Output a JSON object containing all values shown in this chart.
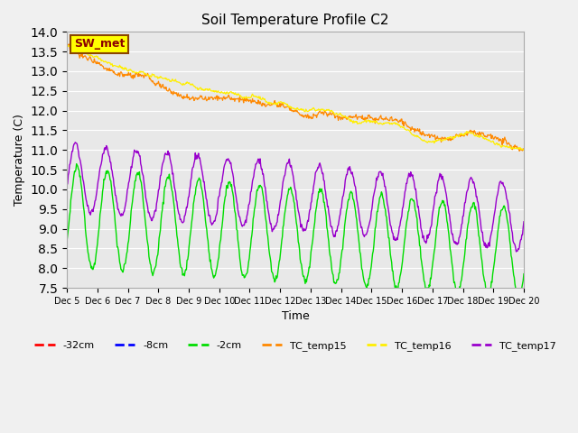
{
  "title": "Soil Temperature Profile C2",
  "xlabel": "Time",
  "ylabel": "Temperature (C)",
  "ylim": [
    7.5,
    14.0
  ],
  "xlim": [
    0,
    15
  ],
  "yticks": [
    7.5,
    8.0,
    8.5,
    9.0,
    9.5,
    10.0,
    10.5,
    11.0,
    11.5,
    12.0,
    12.5,
    13.0,
    13.5,
    14.0
  ],
  "xtick_labels": [
    "Dec 5",
    "Dec 6",
    "Dec 7",
    "Dec 8",
    "Dec 9",
    "Dec 10",
    "Dec 11",
    "Dec 12",
    "Dec 13",
    "Dec 14",
    "Dec 15",
    "Dec 16",
    "Dec 17",
    "Dec 18",
    "Dec 19",
    "Dec 20"
  ],
  "colors": {
    "minus32cm": "#ff0000",
    "minus8cm": "#0000ff",
    "minus2cm": "#00dd00",
    "TC_temp15": "#ff8800",
    "TC_temp16": "#ffee00",
    "TC_temp17": "#9900cc"
  },
  "legend_label": "SW_met",
  "plot_bg_color": "#e8e8e8",
  "fig_bg_color": "#f0f0f0",
  "grid_color": "#ffffff"
}
